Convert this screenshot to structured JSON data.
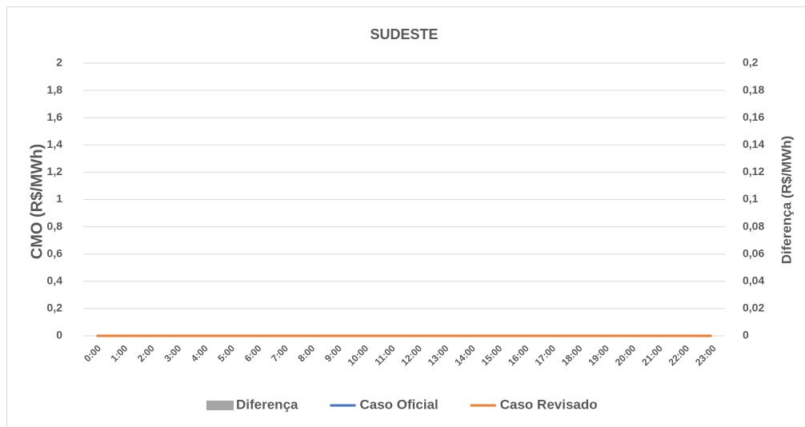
{
  "chart_data": {
    "type": "combo",
    "title": "SUDESTE",
    "y_label": "CMO (R$/MWh)",
    "y2_label": "Diferença (R$/MWh)",
    "categories": [
      "0:00",
      "1:00",
      "2:00",
      "3:00",
      "4:00",
      "5:00",
      "6:00",
      "7:00",
      "8:00",
      "9:00",
      "10:00",
      "11:00",
      "12:00",
      "13:00",
      "14:00",
      "15:00",
      "16:00",
      "17:00",
      "18:00",
      "19:00",
      "20:00",
      "21:00",
      "22:00",
      "23:00"
    ],
    "series": [
      {
        "name": "Diferença",
        "type": "bar",
        "axis": "y2",
        "color": "#a5a5a5",
        "values": [
          0,
          0,
          0,
          0,
          0,
          0,
          0,
          0,
          0,
          0,
          0,
          0,
          0,
          0,
          0,
          0,
          0,
          0,
          0,
          0,
          0,
          0,
          0,
          0
        ]
      },
      {
        "name": "Caso Oficial",
        "type": "line",
        "color": "#4472c4",
        "values": [
          0,
          0,
          0,
          0,
          0,
          0,
          0,
          0,
          0,
          0,
          0,
          0,
          0,
          0,
          0,
          0,
          0,
          0,
          0,
          0,
          0,
          0,
          0,
          0
        ]
      },
      {
        "name": "Caso Revisado",
        "type": "line",
        "color": "#ed7d31",
        "values": [
          0,
          0,
          0,
          0,
          0,
          0,
          0,
          0,
          0,
          0,
          0,
          0,
          0,
          0,
          0,
          0,
          0,
          0,
          0,
          0,
          0,
          0,
          0,
          0
        ]
      }
    ],
    "ylim": [
      0,
      2
    ],
    "yticks": [
      0,
      {
        "value": 0.2,
        "label": "0,2"
      },
      {
        "value": 0.4,
        "label": "0,4"
      },
      {
        "value": 0.6,
        "label": "0,6"
      },
      {
        "value": 0.8,
        "label": "0,8"
      },
      1,
      {
        "value": 1.2,
        "label": "1,2"
      },
      {
        "value": 1.4,
        "label": "1,4"
      },
      {
        "value": 1.6,
        "label": "1,6"
      },
      {
        "value": 1.8,
        "label": "1,8"
      },
      2
    ],
    "y2lim": [
      0,
      0.2
    ],
    "y2ticks": [
      0,
      {
        "value": 0.02,
        "label": "0,02"
      },
      {
        "value": 0.04,
        "label": "0,04"
      },
      {
        "value": 0.06,
        "label": "0,06"
      },
      {
        "value": 0.08,
        "label": "0,08"
      },
      {
        "value": 0.1,
        "label": "0,1"
      },
      {
        "value": 0.12,
        "label": "0,12"
      },
      {
        "value": 0.14,
        "label": "0,14"
      },
      {
        "value": 0.16,
        "label": "0,16"
      },
      {
        "value": 0.18,
        "label": "0,18"
      },
      {
        "value": 0.2,
        "label": "0,2"
      }
    ],
    "grid": true,
    "legend": "bottom"
  }
}
